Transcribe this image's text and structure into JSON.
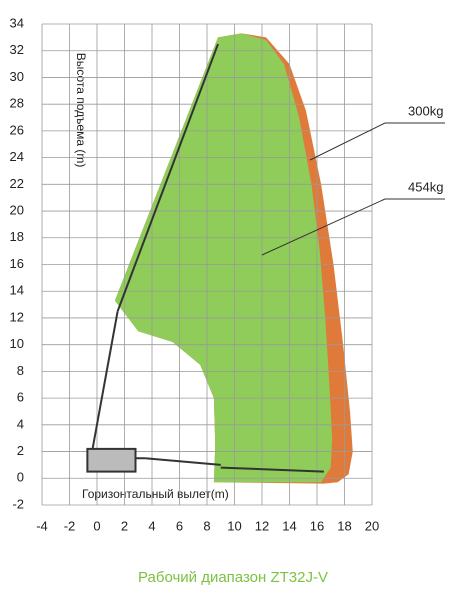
{
  "chart_data": {
    "type": "envelope",
    "title": "Рабочий диапазон ZT32J-V",
    "x_label": "Горизонтальный вылет(m)",
    "y_label": "Высота подъема (m)",
    "xlim": [
      -4,
      20
    ],
    "xticks": [
      -4,
      -2,
      0,
      2,
      4,
      6,
      8,
      10,
      12,
      14,
      16,
      18,
      20
    ],
    "ylim": [
      -2,
      34
    ],
    "yticks": [
      -2,
      0,
      2,
      4,
      6,
      8,
      10,
      12,
      14,
      16,
      18,
      20,
      22,
      24,
      26,
      28,
      30,
      32,
      34
    ],
    "grid": true,
    "series": [
      {
        "name": "300kg",
        "color": "#e07a3a",
        "x": [
          1.3,
          8.8,
          10.5,
          12.3,
          14,
          15.2,
          16.3,
          17.2,
          17.9,
          18.4,
          18.6,
          18.3,
          17.5,
          16.5,
          8.5,
          8.6,
          8.5,
          7.5,
          5.5,
          3,
          1.3
        ],
        "values": [
          13.3,
          33,
          33.3,
          33,
          31,
          27.5,
          22,
          16,
          10,
          5,
          2,
          0.3,
          -0.3,
          -0.4,
          -0.3,
          2.5,
          6,
          8.5,
          10.2,
          11,
          13.3
        ]
      },
      {
        "name": "454kg",
        "color": "#8fcc5a",
        "x": [
          1.3,
          8.8,
          10.5,
          12.3,
          13.6,
          14.7,
          15.6,
          16.2,
          16.6,
          16.9,
          17.1,
          17,
          16.3,
          8.5,
          8.6,
          8.5,
          7.5,
          5.5,
          3,
          1.3
        ],
        "values": [
          13.3,
          33,
          33.3,
          32.8,
          31,
          27,
          22,
          17,
          12,
          7,
          3,
          0.8,
          -0.3,
          -0.3,
          2.5,
          6,
          8.5,
          10.2,
          11,
          13.3
        ]
      }
    ]
  }
}
